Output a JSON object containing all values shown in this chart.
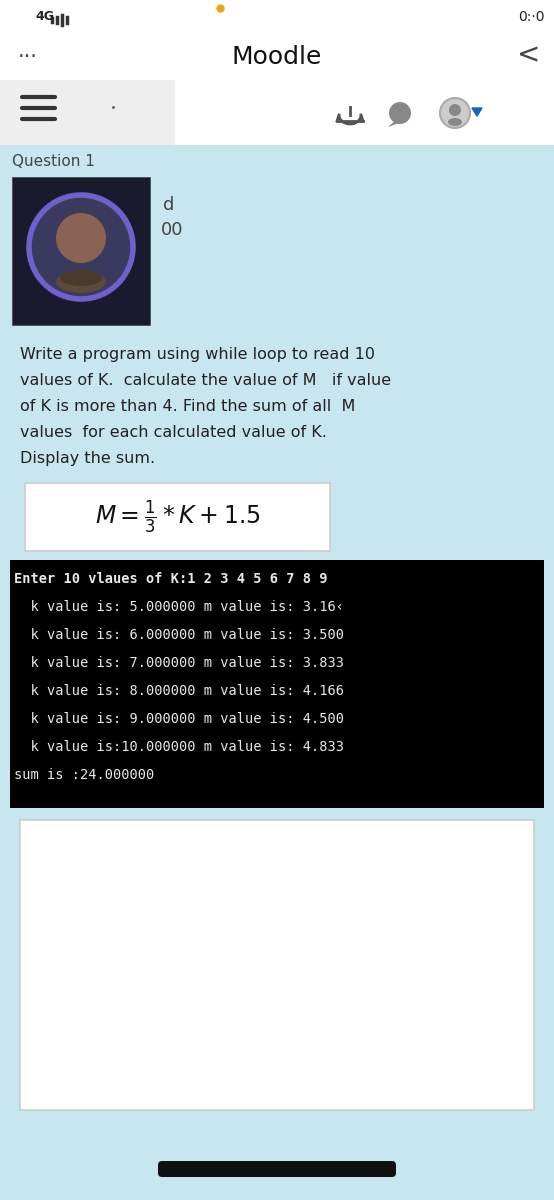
{
  "bg_color": "#ffffff",
  "statusbar_bg": "#ffffff",
  "nav_title": "Moodle",
  "nav_dots": "...",
  "nav_back": "<",
  "content_bg": "#c8e6f0",
  "question_label": "Question 1",
  "profile_bg": "#1a1a2e",
  "profile_border_color": "#7060cc",
  "header_text_d": "d",
  "header_text_00": "00",
  "problem_lines": [
    "Write a program using while loop to read 10",
    "values of K.  calculate the value of M   if value",
    "of K is more than 4. Find the sum of all  M",
    "values  for each calculated value of K.",
    "Display the sum."
  ],
  "formula_bg": "#ffffff",
  "terminal_bg": "#000000",
  "terminal_text_color": "#e8e8e8",
  "terminal_lines": [
    "Enter 10 vlaues of K:1 2 3 4 5 6 7 8 9",
    "  k value is: 5.000000 m value is: 3.16‹",
    "  k value is: 6.000000 m value is: 3.500",
    "  k value is: 7.000000 m value is: 3.833",
    "  k value is: 8.000000 m value is: 4.166",
    "  k value is: 9.000000 m value is: 4.500",
    "  k value is:10.000000 m value is: 4.833",
    "sum is :24.000000"
  ],
  "bottom_box_bg": "#ffffff",
  "bottom_bar_color": "#111111",
  "dot_color": "#e6a817",
  "toolbar_bg": "#eeeeee",
  "icon_color": "#555555",
  "blue_arrow": "#1565c0"
}
